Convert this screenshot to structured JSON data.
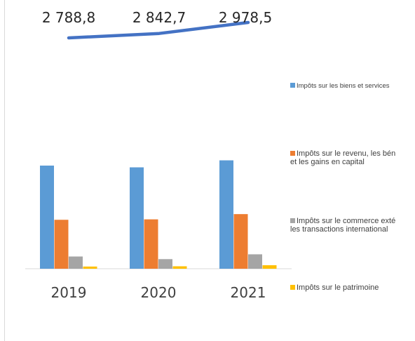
{
  "chart_data": {
    "type": "bar",
    "categories": [
      "2019",
      "2020",
      "2021"
    ],
    "series": [
      {
        "name": "Impôts sur les biens et services",
        "color": "#5B9BD5",
        "values": [
          1180,
          1160,
          1240
        ]
      },
      {
        "name": "Impôts sur le revenu, les bén\net les gains en capital",
        "color": "#ED7D31",
        "values": [
          560,
          565,
          625
        ]
      },
      {
        "name": "Impôts sur le commerce exté\nles transactions international",
        "color": "#A5A5A5",
        "values": [
          140,
          110,
          165
        ]
      },
      {
        "name": "Impôts sur le patrimoine",
        "color": "#FFC000",
        "values": [
          25,
          28,
          40
        ]
      }
    ],
    "total_line": {
      "color": "#4472C4",
      "values": [
        2788.8,
        2842.7,
        2978.5
      ],
      "labels": [
        "2 788,8",
        "2 842,7",
        "2 978,5"
      ]
    },
    "grid": false,
    "legend_position": "right"
  }
}
